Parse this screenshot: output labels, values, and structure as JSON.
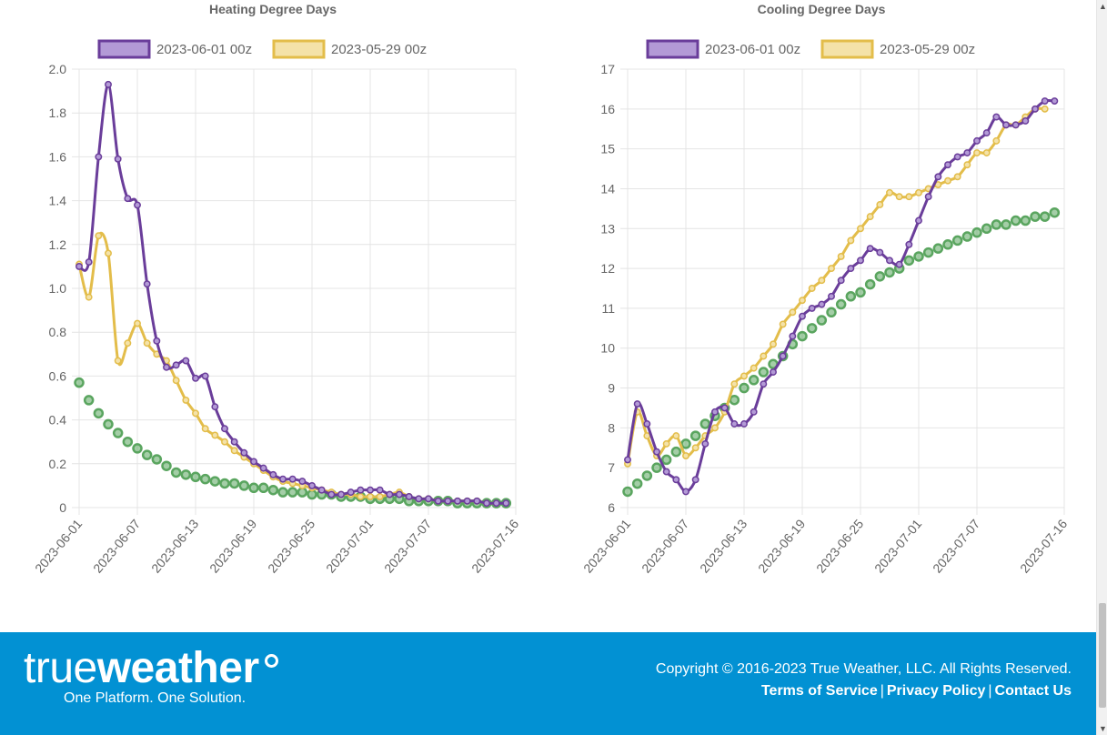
{
  "colors": {
    "run_current": "#6a3d9a",
    "run_current_fill": "#b39ad6",
    "run_previous": "#e3bd4a",
    "run_previous_fill": "#f4e2a8",
    "normal": "#5aa55f",
    "grid": "#e4e4e4",
    "footer_bg": "#0291d3"
  },
  "chart_data": [
    {
      "id": "hdd",
      "type": "line",
      "title": "Heating Degree Days",
      "x_tick_labels": [
        "2023-06-01",
        "2023-06-07",
        "2023-06-13",
        "2023-06-19",
        "2023-06-25",
        "2023-07-01",
        "2023-07-07",
        "2023-07-16"
      ],
      "x_tick_days": [
        0,
        6,
        12,
        18,
        24,
        30,
        36,
        45
      ],
      "x_range_days": [
        0,
        45
      ],
      "y_tick_labels": [
        "0",
        "0.2",
        "0.4",
        "0.6",
        "0.8",
        "1.0",
        "1.2",
        "1.4",
        "1.6",
        "1.8",
        "2.0"
      ],
      "ylim": [
        0,
        2.0
      ],
      "y_step": 0.2,
      "grid": true,
      "legend_position": "top",
      "series": [
        {
          "name": "2023-06-01 00z",
          "role": "current",
          "x_days": [
            0,
            1,
            2,
            3,
            4,
            5,
            6,
            7,
            8,
            9,
            10,
            11,
            12,
            13,
            14,
            15,
            16,
            17,
            18,
            19,
            20,
            21,
            22,
            23,
            24,
            25,
            26,
            27,
            28,
            29,
            30,
            31,
            32,
            33,
            34,
            35,
            36,
            37,
            38,
            39,
            40,
            41,
            42,
            43,
            44
          ],
          "values": [
            1.1,
            1.12,
            1.6,
            1.93,
            1.59,
            1.41,
            1.38,
            1.02,
            0.76,
            0.64,
            0.65,
            0.67,
            0.59,
            0.6,
            0.46,
            0.36,
            0.3,
            0.25,
            0.21,
            0.18,
            0.15,
            0.13,
            0.13,
            0.12,
            0.1,
            0.08,
            0.06,
            0.06,
            0.07,
            0.08,
            0.08,
            0.08,
            0.06,
            0.06,
            0.05,
            0.04,
            0.04,
            0.03,
            0.03,
            0.03,
            0.03,
            0.03,
            0.02,
            0.02,
            0.02
          ]
        },
        {
          "name": "2023-05-29 00z",
          "role": "previous",
          "x_days": [
            0,
            1,
            2,
            3,
            4,
            5,
            6,
            7,
            8,
            9,
            10,
            11,
            12,
            13,
            14,
            15,
            16,
            17,
            18,
            19,
            20,
            21,
            22,
            23,
            24,
            25,
            26,
            27,
            28,
            29,
            30,
            31,
            32,
            33,
            34,
            35,
            36,
            37,
            38,
            39,
            40,
            41,
            42,
            43
          ],
          "values": [
            1.11,
            0.96,
            1.24,
            1.16,
            0.67,
            0.75,
            0.84,
            0.75,
            0.7,
            0.67,
            0.58,
            0.49,
            0.43,
            0.36,
            0.33,
            0.3,
            0.26,
            0.23,
            0.2,
            0.17,
            0.14,
            0.12,
            0.11,
            0.1,
            0.09,
            0.08,
            0.07,
            0.06,
            0.06,
            0.05,
            0.05,
            0.05,
            0.06,
            0.07,
            0.05,
            0.04,
            0.04,
            0.03,
            0.03,
            0.03,
            0.03,
            0.03,
            0.02,
            0.02
          ]
        },
        {
          "name": "",
          "role": "normal",
          "x_days": [
            0,
            1,
            2,
            3,
            4,
            5,
            6,
            7,
            8,
            9,
            10,
            11,
            12,
            13,
            14,
            15,
            16,
            17,
            18,
            19,
            20,
            21,
            22,
            23,
            24,
            25,
            26,
            27,
            28,
            29,
            30,
            31,
            32,
            33,
            34,
            35,
            36,
            37,
            38,
            39,
            40,
            41,
            42,
            43,
            44
          ],
          "values": [
            0.57,
            0.49,
            0.43,
            0.38,
            0.34,
            0.3,
            0.27,
            0.24,
            0.22,
            0.19,
            0.16,
            0.15,
            0.14,
            0.13,
            0.12,
            0.11,
            0.11,
            0.1,
            0.09,
            0.09,
            0.08,
            0.07,
            0.07,
            0.07,
            0.06,
            0.06,
            0.06,
            0.05,
            0.05,
            0.05,
            0.04,
            0.04,
            0.04,
            0.04,
            0.03,
            0.03,
            0.03,
            0.03,
            0.03,
            0.02,
            0.02,
            0.02,
            0.02,
            0.02,
            0.02
          ]
        }
      ]
    },
    {
      "id": "cdd",
      "type": "line",
      "title": "Cooling Degree Days",
      "x_tick_labels": [
        "2023-06-01",
        "2023-06-07",
        "2023-06-13",
        "2023-06-19",
        "2023-06-25",
        "2023-07-01",
        "2023-07-07",
        "2023-07-16"
      ],
      "x_tick_days": [
        0,
        6,
        12,
        18,
        24,
        30,
        36,
        45
      ],
      "x_range_days": [
        0,
        45
      ],
      "y_tick_labels": [
        "6",
        "7",
        "8",
        "9",
        "10",
        "11",
        "12",
        "13",
        "14",
        "15",
        "16",
        "17"
      ],
      "ylim": [
        6,
        17
      ],
      "y_step": 1,
      "grid": true,
      "legend_position": "top",
      "series": [
        {
          "name": "2023-06-01 00z",
          "role": "current",
          "x_days": [
            0,
            1,
            2,
            3,
            4,
            5,
            6,
            7,
            8,
            9,
            10,
            11,
            12,
            13,
            14,
            15,
            16,
            17,
            18,
            19,
            20,
            21,
            22,
            23,
            24,
            25,
            26,
            27,
            28,
            29,
            30,
            31,
            32,
            33,
            34,
            35,
            36,
            37,
            38,
            39,
            40,
            41,
            42,
            43,
            44
          ],
          "values": [
            7.2,
            8.6,
            8.1,
            7.4,
            6.9,
            6.7,
            6.4,
            6.7,
            7.6,
            8.4,
            8.5,
            8.1,
            8.1,
            8.4,
            9.1,
            9.4,
            9.8,
            10.3,
            10.8,
            11.0,
            11.1,
            11.3,
            11.7,
            12.0,
            12.2,
            12.5,
            12.4,
            12.2,
            12.1,
            12.6,
            13.2,
            13.8,
            14.3,
            14.6,
            14.8,
            14.9,
            15.2,
            15.4,
            15.8,
            15.6,
            15.6,
            15.7,
            16.0,
            16.2,
            16.2
          ]
        },
        {
          "name": "2023-05-29 00z",
          "role": "previous",
          "x_days": [
            0,
            1,
            2,
            3,
            4,
            5,
            6,
            7,
            8,
            9,
            10,
            11,
            12,
            13,
            14,
            15,
            16,
            17,
            18,
            19,
            20,
            21,
            22,
            23,
            24,
            25,
            26,
            27,
            28,
            29,
            30,
            31,
            32,
            33,
            34,
            35,
            36,
            37,
            38,
            39,
            40,
            41,
            42,
            43
          ],
          "values": [
            7.1,
            8.4,
            7.8,
            7.3,
            7.6,
            7.8,
            7.3,
            7.5,
            7.8,
            8.0,
            8.4,
            9.1,
            9.3,
            9.5,
            9.8,
            10.1,
            10.6,
            10.9,
            11.2,
            11.5,
            11.7,
            12.0,
            12.3,
            12.7,
            13.0,
            13.3,
            13.6,
            13.9,
            13.8,
            13.8,
            13.9,
            14.0,
            14.1,
            14.2,
            14.3,
            14.6,
            14.9,
            14.9,
            15.2,
            15.6,
            15.6,
            15.8,
            16.0,
            16.0
          ]
        },
        {
          "name": "",
          "role": "normal",
          "x_days": [
            0,
            1,
            2,
            3,
            4,
            5,
            6,
            7,
            8,
            9,
            10,
            11,
            12,
            13,
            14,
            15,
            16,
            17,
            18,
            19,
            20,
            21,
            22,
            23,
            24,
            25,
            26,
            27,
            28,
            29,
            30,
            31,
            32,
            33,
            34,
            35,
            36,
            37,
            38,
            39,
            40,
            41,
            42,
            43,
            44
          ],
          "values": [
            6.4,
            6.6,
            6.8,
            7.0,
            7.2,
            7.4,
            7.6,
            7.8,
            8.1,
            8.3,
            8.5,
            8.7,
            9.0,
            9.2,
            9.4,
            9.6,
            9.8,
            10.1,
            10.3,
            10.5,
            10.7,
            10.9,
            11.1,
            11.3,
            11.4,
            11.6,
            11.8,
            11.9,
            12.0,
            12.2,
            12.3,
            12.4,
            12.5,
            12.6,
            12.7,
            12.8,
            12.9,
            13.0,
            13.1,
            13.1,
            13.2,
            13.2,
            13.3,
            13.3,
            13.4
          ]
        }
      ]
    }
  ],
  "footer": {
    "logo_true": "true",
    "logo_weather": "weather",
    "tagline": "One Platform. One Solution.",
    "copyright": "Copyright © 2016-2023 True Weather, LLC. All Rights Reserved.",
    "links": [
      {
        "label": "Terms of Service"
      },
      {
        "label": "Privacy Policy"
      },
      {
        "label": "Contact Us"
      }
    ],
    "separator": "|"
  },
  "scrollbar": {
    "up_icon": "triangle-up-icon",
    "down_icon": "triangle-down-icon",
    "up_glyph": "▲",
    "down_glyph": "▼"
  }
}
